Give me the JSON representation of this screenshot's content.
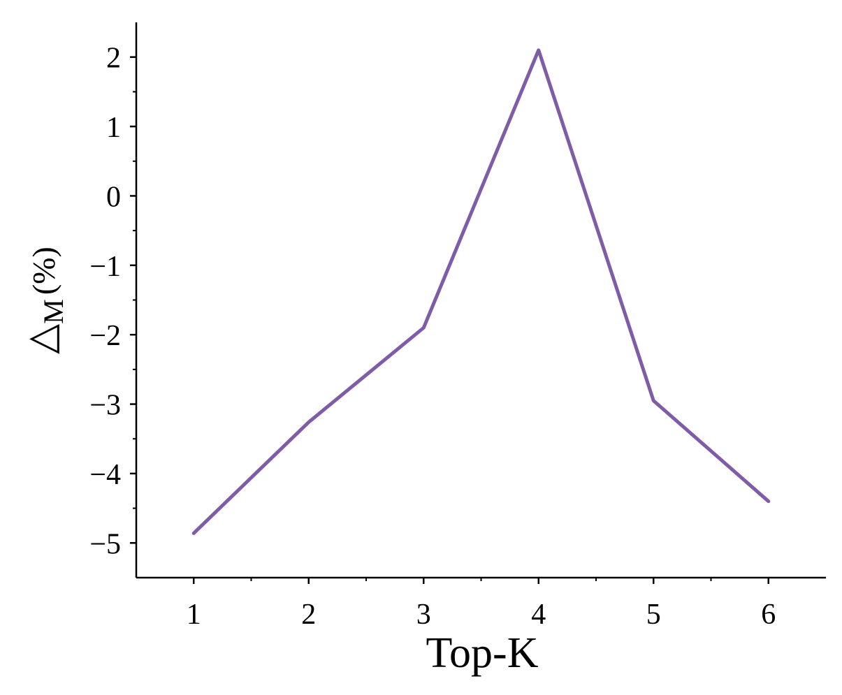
{
  "chart_data": {
    "type": "line",
    "xlabel": "Top-K",
    "ylabel": "△",
    "ylabel_subscript": "M",
    "ylabel_unit": "(%)",
    "x": [
      1,
      2,
      3,
      4,
      5,
      6
    ],
    "series": [
      {
        "color": "#7e5ca8",
        "values": [
          -4.86,
          -3.26,
          -1.9,
          2.1,
          -2.95,
          -4.4
        ]
      }
    ],
    "xlim": [
      0.5,
      6.5
    ],
    "xticks": [
      1,
      2,
      3,
      4,
      5,
      6
    ],
    "xminorticks": [
      1.5,
      2.5,
      3.5,
      4.5,
      5.5
    ],
    "ylim": [
      -5.5,
      2.5
    ],
    "yticks": [
      {
        "value": -5,
        "label": "−5"
      },
      {
        "value": -4,
        "label": "−4"
      },
      {
        "value": -3,
        "label": "−3"
      },
      {
        "value": -2,
        "label": "−2"
      },
      {
        "value": -1,
        "label": "−1"
      },
      0,
      1,
      2
    ],
    "yminorticks": [
      -4.5,
      -3.5,
      -2.5,
      -1.5,
      -0.5,
      0.5,
      1.5
    ],
    "grid": false
  }
}
